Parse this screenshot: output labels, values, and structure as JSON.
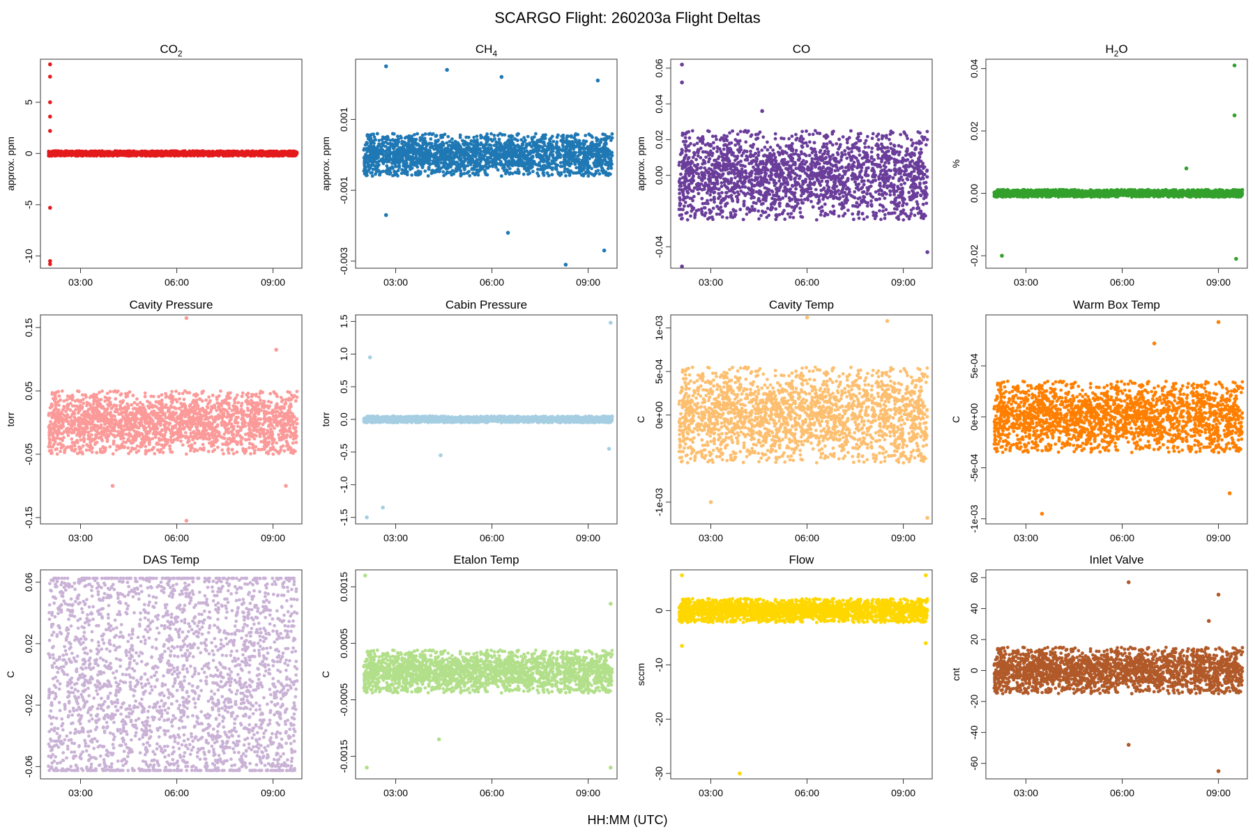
{
  "figure": {
    "title": "SCARGO Flight: 260203a  Flight Deltas",
    "xlabel": "HH:MM (UTC)"
  },
  "chart_data": [
    {
      "type": "scatter",
      "title": "CO2",
      "title_main": "CO",
      "title_sub": "2",
      "ylabel": "approx. ppm",
      "color": "#e31a1c",
      "xlim": [
        1.75,
        9.9
      ],
      "ylim": [
        -11.2,
        9.2
      ],
      "xticks": [
        3,
        6,
        9
      ],
      "xtick_labels": [
        "03:00",
        "06:00",
        "09:00"
      ],
      "yticks": [
        5,
        0,
        -5,
        -10
      ],
      "ytick_labels": [
        "5",
        "0",
        "-5",
        "-10"
      ],
      "x_start": 2.0,
      "x_end": 9.75,
      "typical_range": [
        -0.25,
        0.25
      ],
      "outliers": [
        {
          "x": 2.05,
          "y": 8.7
        },
        {
          "x": 2.05,
          "y": 7.5
        },
        {
          "x": 2.05,
          "y": 5.0
        },
        {
          "x": 2.05,
          "y": 3.6
        },
        {
          "x": 2.05,
          "y": 2.2
        },
        {
          "x": 2.05,
          "y": -5.3
        },
        {
          "x": 2.05,
          "y": -10.5
        },
        {
          "x": 2.05,
          "y": -10.8
        }
      ]
    },
    {
      "type": "scatter",
      "title": "CH4",
      "title_main": "CH",
      "title_sub": "4",
      "ylabel": "approx. ppm",
      "color": "#1f78b4",
      "xlim": [
        1.75,
        9.9
      ],
      "ylim": [
        -0.0032,
        0.0027
      ],
      "xticks": [
        3,
        6,
        9
      ],
      "xtick_labels": [
        "03:00",
        "06:00",
        "09:00"
      ],
      "yticks": [
        0.001,
        -0.001,
        -0.003
      ],
      "ytick_labels": [
        "0.001",
        "-0.001",
        "-0.003"
      ],
      "x_start": 2.0,
      "x_end": 9.75,
      "typical_range": [
        -0.0006,
        0.0006
      ],
      "outliers": [
        {
          "x": 2.7,
          "y": 0.0025
        },
        {
          "x": 4.6,
          "y": 0.0024
        },
        {
          "x": 6.3,
          "y": 0.0022
        },
        {
          "x": 6.5,
          "y": -0.0022
        },
        {
          "x": 8.3,
          "y": -0.0031
        },
        {
          "x": 9.3,
          "y": 0.0021
        },
        {
          "x": 2.7,
          "y": -0.0017
        },
        {
          "x": 9.5,
          "y": -0.0027
        }
      ]
    },
    {
      "type": "scatter",
      "title": "CO",
      "title_main": "CO",
      "title_sub": "",
      "ylabel": "approx. ppm",
      "color": "#6a3d9a",
      "xlim": [
        1.75,
        9.9
      ],
      "ylim": [
        -0.052,
        0.065
      ],
      "xticks": [
        3,
        6,
        9
      ],
      "xtick_labels": [
        "03:00",
        "06:00",
        "09:00"
      ],
      "yticks": [
        0.06,
        0.04,
        0.02,
        0.0,
        -0.04
      ],
      "ytick_labels": [
        "0.06",
        "0.04",
        "0.02",
        "0.00",
        "-0.04"
      ],
      "x_start": 2.0,
      "x_end": 9.75,
      "typical_range": [
        -0.025,
        0.025
      ],
      "outliers": [
        {
          "x": 2.1,
          "y": 0.062
        },
        {
          "x": 2.1,
          "y": 0.052
        },
        {
          "x": 2.1,
          "y": -0.051
        },
        {
          "x": 4.6,
          "y": 0.036
        },
        {
          "x": 9.75,
          "y": -0.043
        }
      ]
    },
    {
      "type": "scatter",
      "title": "H2O",
      "title_main": "H",
      "title_sub": "2",
      "title_tail": "O",
      "ylabel": "%",
      "color": "#33a02c",
      "xlim": [
        1.75,
        9.9
      ],
      "ylim": [
        -0.024,
        0.043
      ],
      "xticks": [
        3,
        6,
        9
      ],
      "xtick_labels": [
        "03:00",
        "06:00",
        "09:00"
      ],
      "yticks": [
        0.04,
        0.02,
        0.0,
        -0.02
      ],
      "ytick_labels": [
        "0.04",
        "0.02",
        "0.00",
        "-0.02"
      ],
      "x_start": 2.0,
      "x_end": 9.75,
      "typical_range": [
        -0.0012,
        0.0012
      ],
      "outliers": [
        {
          "x": 9.5,
          "y": 0.041
        },
        {
          "x": 9.5,
          "y": 0.025
        },
        {
          "x": 9.55,
          "y": -0.021
        },
        {
          "x": 2.25,
          "y": -0.02
        },
        {
          "x": 8.0,
          "y": 0.008
        }
      ]
    },
    {
      "type": "scatter",
      "title": "Cavity Pressure",
      "ylabel": "torr",
      "color": "#fb9a99",
      "xlim": [
        1.75,
        9.9
      ],
      "ylim": [
        -0.16,
        0.17
      ],
      "xticks": [
        3,
        6,
        9
      ],
      "xtick_labels": [
        "03:00",
        "06:00",
        "09:00"
      ],
      "yticks": [
        0.15,
        0.05,
        -0.05,
        -0.15
      ],
      "ytick_labels": [
        "0.15",
        "0.05",
        "-0.05",
        "-0.15"
      ],
      "x_start": 2.0,
      "x_end": 9.75,
      "typical_range": [
        -0.05,
        0.05
      ],
      "outliers": [
        {
          "x": 6.3,
          "y": 0.165
        },
        {
          "x": 6.3,
          "y": -0.155
        },
        {
          "x": 4.0,
          "y": -0.1
        },
        {
          "x": 9.1,
          "y": 0.115
        },
        {
          "x": 9.4,
          "y": -0.1
        }
      ]
    },
    {
      "type": "scatter",
      "title": "Cabin Pressure",
      "ylabel": "torr",
      "color": "#a6cee3",
      "xlim": [
        1.75,
        9.9
      ],
      "ylim": [
        -1.6,
        1.6
      ],
      "xticks": [
        3,
        6,
        9
      ],
      "xtick_labels": [
        "03:00",
        "06:00",
        "09:00"
      ],
      "yticks": [
        1.5,
        1.0,
        0.5,
        0.0,
        -0.5,
        -1.0,
        -1.5
      ],
      "ytick_labels": [
        "1.5",
        "1.0",
        "0.5",
        "0.0",
        "-0.5",
        "-1.0",
        "-1.5"
      ],
      "x_start": 2.0,
      "x_end": 9.75,
      "typical_range": [
        -0.05,
        0.05
      ],
      "outliers": [
        {
          "x": 2.2,
          "y": 0.95
        },
        {
          "x": 2.1,
          "y": -1.5
        },
        {
          "x": 2.6,
          "y": -1.35
        },
        {
          "x": 9.7,
          "y": 1.48
        },
        {
          "x": 9.65,
          "y": -0.45
        },
        {
          "x": 4.4,
          "y": -0.55
        }
      ]
    },
    {
      "type": "scatter",
      "title": "Cavity Temp",
      "ylabel": "C",
      "color": "#fdbf6f",
      "xlim": [
        1.75,
        9.9
      ],
      "ylim": [
        -0.00125,
        0.00115
      ],
      "xticks": [
        3,
        6,
        9
      ],
      "xtick_labels": [
        "03:00",
        "06:00",
        "09:00"
      ],
      "yticks": [
        0.001,
        0.0005,
        0.0,
        -0.001
      ],
      "ytick_labels": [
        "1e-03",
        "5e-04",
        "0e+00",
        "-1e-03"
      ],
      "x_start": 2.0,
      "x_end": 9.75,
      "typical_range": [
        -0.00055,
        0.00055
      ],
      "outliers": [
        {
          "x": 6.0,
          "y": 0.00112
        },
        {
          "x": 8.5,
          "y": 0.00108
        },
        {
          "x": 3.0,
          "y": -0.001
        },
        {
          "x": 9.75,
          "y": -0.00118
        }
      ]
    },
    {
      "type": "scatter",
      "title": "Warm Box Temp",
      "ylabel": "C",
      "color": "#ff7f00",
      "xlim": [
        1.75,
        9.9
      ],
      "ylim": [
        -0.00105,
        0.001
      ],
      "xticks": [
        3,
        6,
        9
      ],
      "xtick_labels": [
        "03:00",
        "06:00",
        "09:00"
      ],
      "yticks": [
        0.0005,
        0.0,
        -0.0005,
        -0.001
      ],
      "ytick_labels": [
        "5e-04",
        "0e+00",
        "-5e-04",
        "-1e-03"
      ],
      "x_start": 2.0,
      "x_end": 9.75,
      "typical_range": [
        -0.00035,
        0.00035
      ],
      "outliers": [
        {
          "x": 9.0,
          "y": 0.00093
        },
        {
          "x": 3.5,
          "y": -0.00095
        },
        {
          "x": 9.35,
          "y": -0.00075
        },
        {
          "x": 7.0,
          "y": 0.00072
        }
      ]
    },
    {
      "type": "scatter",
      "title": "DAS Temp",
      "ylabel": "C",
      "color": "#cab2d6",
      "xlim": [
        1.75,
        9.9
      ],
      "ylim": [
        -0.068,
        0.068
      ],
      "xticks": [
        3,
        6,
        9
      ],
      "xtick_labels": [
        "03:00",
        "06:00",
        "09:00"
      ],
      "yticks": [
        0.06,
        0.02,
        -0.02,
        -0.06
      ],
      "ytick_labels": [
        "0.06",
        "0.02",
        "-0.02",
        "-0.06"
      ],
      "x_start": 2.0,
      "x_end": 9.75,
      "typical_range": [
        -0.0625,
        0.0625
      ],
      "outliers": []
    },
    {
      "type": "scatter",
      "title": "Etalon Temp",
      "ylabel": "C",
      "color": "#b2df8a",
      "xlim": [
        1.75,
        9.9
      ],
      "ylim": [
        -0.0019,
        0.0018
      ],
      "xticks": [
        3,
        6,
        9
      ],
      "xtick_labels": [
        "03:00",
        "06:00",
        "09:00"
      ],
      "yticks": [
        0.0015,
        0.0005,
        -0.0005,
        -0.0015
      ],
      "ytick_labels": [
        "0.0015",
        "0.0005",
        "-0.0005",
        "-0.0015"
      ],
      "x_start": 2.0,
      "x_end": 9.75,
      "typical_range": [
        -0.00038,
        0.00038
      ],
      "outliers": [
        {
          "x": 2.05,
          "y": 0.0017
        },
        {
          "x": 2.1,
          "y": -0.0017
        },
        {
          "x": 4.35,
          "y": -0.0012
        },
        {
          "x": 9.7,
          "y": -0.0017
        },
        {
          "x": 9.7,
          "y": 0.0012
        }
      ]
    },
    {
      "type": "scatter",
      "title": "Flow",
      "ylabel": "sccm",
      "color": "#ffd700",
      "xlim": [
        1.75,
        9.9
      ],
      "ylim": [
        -31,
        7.5
      ],
      "xticks": [
        3,
        6,
        9
      ],
      "xtick_labels": [
        "03:00",
        "06:00",
        "09:00"
      ],
      "yticks": [
        0,
        -10,
        -20,
        -30
      ],
      "ytick_labels": [
        "0",
        "-10",
        "-20",
        "-30"
      ],
      "x_start": 2.0,
      "x_end": 9.75,
      "typical_range": [
        -2.2,
        2.2
      ],
      "outliers": [
        {
          "x": 3.9,
          "y": -30
        },
        {
          "x": 2.1,
          "y": 6.5
        },
        {
          "x": 2.1,
          "y": -6.5
        },
        {
          "x": 9.7,
          "y": 6.5
        },
        {
          "x": 9.7,
          "y": -6
        }
      ]
    },
    {
      "type": "scatter",
      "title": "Inlet Valve",
      "ylabel": "cnt",
      "color": "#b15928",
      "xlim": [
        1.75,
        9.9
      ],
      "ylim": [
        -70,
        65
      ],
      "xticks": [
        3,
        6,
        9
      ],
      "xtick_labels": [
        "03:00",
        "06:00",
        "09:00"
      ],
      "yticks": [
        60,
        40,
        20,
        0,
        -20,
        -40,
        -60
      ],
      "ytick_labels": [
        "60",
        "40",
        "20",
        "0",
        "-20",
        "-40",
        "-60"
      ],
      "x_start": 2.0,
      "x_end": 9.75,
      "typical_range": [
        -15,
        15
      ],
      "outliers": [
        {
          "x": 6.2,
          "y": 57
        },
        {
          "x": 6.2,
          "y": -48
        },
        {
          "x": 9.0,
          "y": 49
        },
        {
          "x": 9.0,
          "y": -65
        },
        {
          "x": 8.7,
          "y": 32
        }
      ]
    }
  ]
}
